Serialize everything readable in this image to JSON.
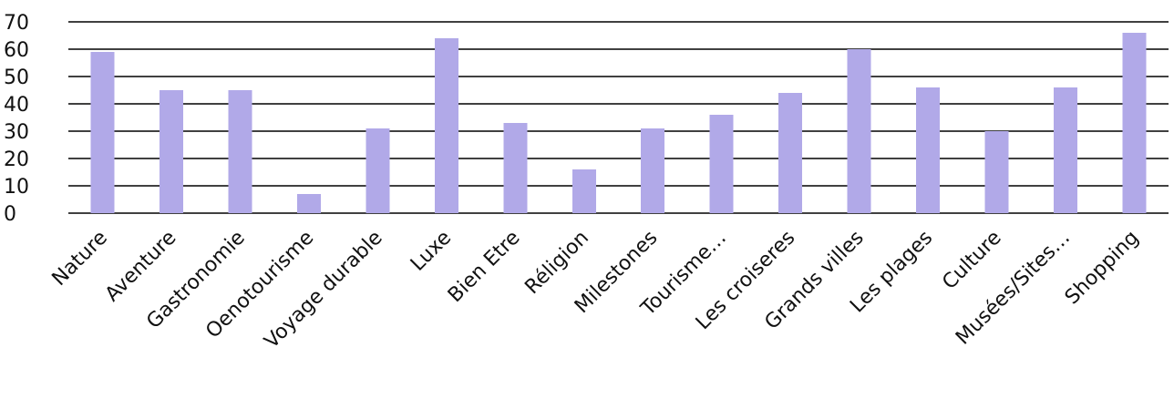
{
  "chart_data": {
    "type": "bar",
    "title": "",
    "xlabel": "",
    "ylabel": "",
    "ylim": [
      0,
      70
    ],
    "yticks": [
      0,
      10,
      20,
      30,
      40,
      50,
      60,
      70
    ],
    "grid": true,
    "bar_color": "#b1a9e8",
    "grid_color": "#000000",
    "categories": [
      "Nature",
      "Aventure",
      "Gastronomie",
      "Oenotourisme",
      "Voyage durable",
      "Luxe",
      "Bien Etre",
      "Réligion",
      "Milestones",
      "Tourisme…",
      "Les croiseres",
      "Grands villes",
      "Les plages",
      "Culture",
      "Musées/Sites…",
      "Shopping"
    ],
    "values": [
      59,
      45,
      45,
      7,
      31,
      64,
      33,
      16,
      31,
      36,
      44,
      60,
      46,
      30,
      46,
      66
    ]
  }
}
